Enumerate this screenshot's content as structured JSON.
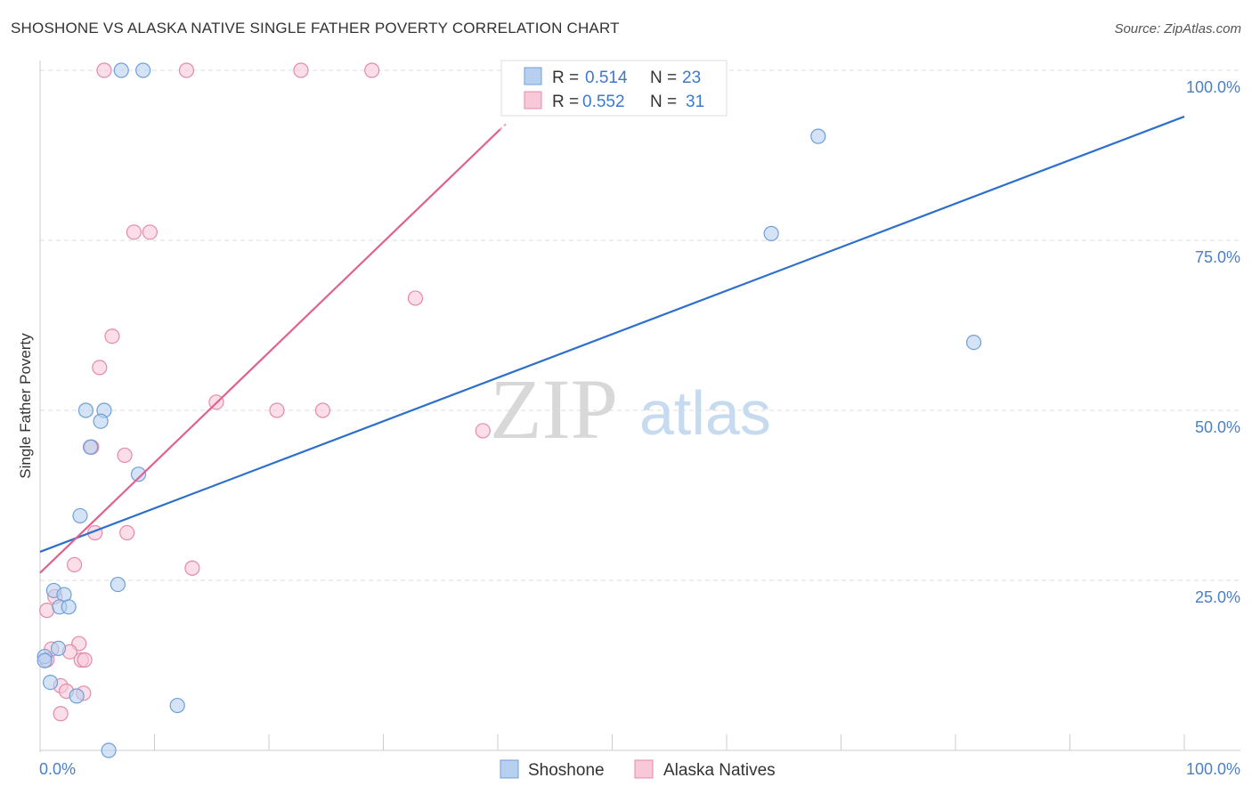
{
  "header": {
    "title": "SHOSHONE VS ALASKA NATIVE SINGLE FATHER POVERTY CORRELATION CHART",
    "source": "Source: ZipAtlas.com"
  },
  "watermark": {
    "zip": "ZIP",
    "atlas": "atlas"
  },
  "legend_top": {
    "r_label": "R =",
    "n_label": "N =",
    "rows": [
      {
        "series": "Shoshone",
        "r": "0.514",
        "n": "23"
      },
      {
        "series": "Alaska Natives",
        "r": "0.552",
        "n": "31"
      }
    ]
  },
  "legend_bottom": [
    "Shoshone",
    "Alaska Natives"
  ],
  "colors": {
    "shoshone_fill": "#b8d0f0",
    "shoshone_stroke": "#6f9fd8",
    "shoshone_line": "#2d6fcc",
    "alaska_fill": "#f8c8d8",
    "alaska_stroke": "#e58aa8",
    "alaska_line": "#e06090",
    "tick": "#4a7fc8"
  },
  "chart_data": {
    "type": "scatter",
    "title": "SHOSHONE VS ALASKA NATIVE SINGLE FATHER POVERTY CORRELATION CHART",
    "xlabel": "",
    "ylabel": "Single Father Poverty",
    "xlim": [
      0,
      100
    ],
    "ylim": [
      0,
      100
    ],
    "x_ticks": [
      "0.0%",
      "100.0%"
    ],
    "y_ticks": [
      {
        "value": 25,
        "label": "25.0%"
      },
      {
        "value": 50,
        "label": "50.0%"
      },
      {
        "value": 75,
        "label": "75.0%"
      },
      {
        "value": 100,
        "label": "100.0%"
      }
    ],
    "series": [
      {
        "name": "Shoshone",
        "r": 0.514,
        "n": 23,
        "trend": {
          "x": [
            0,
            100
          ],
          "y": [
            29.2,
            93.2
          ]
        },
        "points": [
          [
            7.1,
            100
          ],
          [
            9.0,
            100
          ],
          [
            68.0,
            90.3
          ],
          [
            63.9,
            76.0
          ],
          [
            81.6,
            60.0
          ],
          [
            4.0,
            50.0
          ],
          [
            5.6,
            50.0
          ],
          [
            5.3,
            48.4
          ],
          [
            4.4,
            44.6
          ],
          [
            8.6,
            40.6
          ],
          [
            3.5,
            34.5
          ],
          [
            6.8,
            24.4
          ],
          [
            1.2,
            23.5
          ],
          [
            2.1,
            22.9
          ],
          [
            1.7,
            21.1
          ],
          [
            2.5,
            21.1
          ],
          [
            1.6,
            15.0
          ],
          [
            0.4,
            13.8
          ],
          [
            0.4,
            13.2
          ],
          [
            0.9,
            10.0
          ],
          [
            3.2,
            8.0
          ],
          [
            12.0,
            6.6
          ],
          [
            6.0,
            0.0
          ]
        ]
      },
      {
        "name": "Alaska Natives",
        "r": 0.552,
        "n": 31,
        "trend": {
          "x": [
            0,
            40.2
          ],
          "y": [
            26.1,
            91.3
          ],
          "dashed_to": {
            "x": 40.9,
            "y": 92.4
          }
        },
        "points": [
          [
            5.6,
            100
          ],
          [
            12.8,
            100
          ],
          [
            22.8,
            100
          ],
          [
            29.0,
            100
          ],
          [
            8.2,
            76.2
          ],
          [
            9.6,
            76.2
          ],
          [
            32.8,
            66.5
          ],
          [
            6.3,
            60.9
          ],
          [
            5.2,
            56.3
          ],
          [
            15.4,
            51.2
          ],
          [
            20.7,
            50.0
          ],
          [
            24.7,
            50.0
          ],
          [
            38.7,
            47.0
          ],
          [
            4.5,
            44.6
          ],
          [
            7.4,
            43.4
          ],
          [
            4.8,
            32.0
          ],
          [
            7.6,
            32.0
          ],
          [
            3.0,
            27.3
          ],
          [
            13.3,
            26.8
          ],
          [
            1.3,
            22.6
          ],
          [
            0.6,
            20.6
          ],
          [
            3.4,
            15.7
          ],
          [
            1.0,
            14.9
          ],
          [
            2.6,
            14.5
          ],
          [
            3.6,
            13.3
          ],
          [
            3.9,
            13.3
          ],
          [
            0.6,
            13.3
          ],
          [
            1.8,
            9.5
          ],
          [
            2.3,
            8.7
          ],
          [
            3.8,
            8.4
          ],
          [
            1.8,
            5.4
          ]
        ]
      }
    ]
  }
}
